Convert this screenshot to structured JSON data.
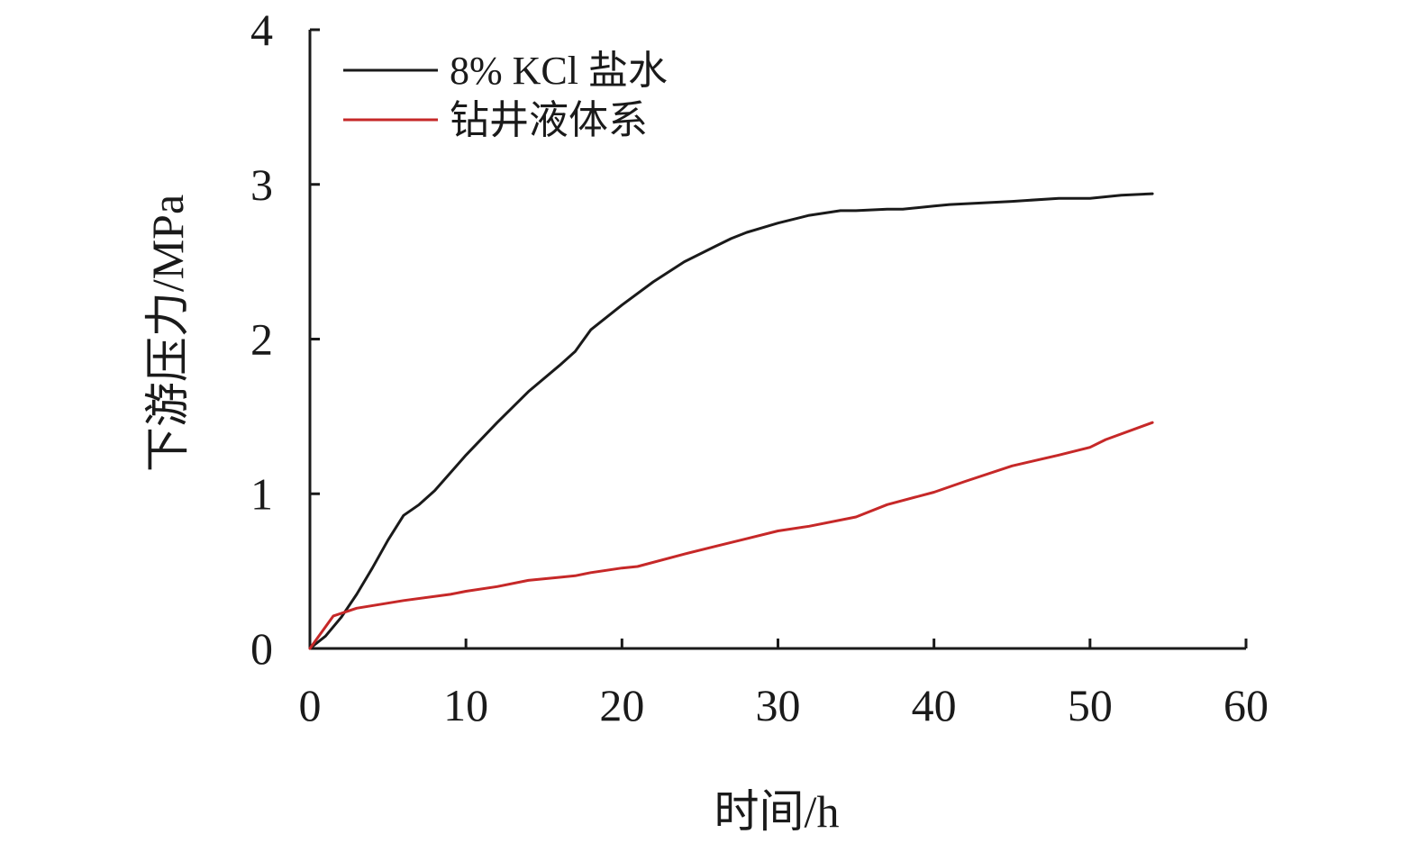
{
  "chart_data": {
    "type": "line",
    "title": "",
    "xlabel": "时间/h",
    "ylabel": "下游压力/MPa",
    "xlim": [
      0,
      60
    ],
    "ylim": [
      0,
      4
    ],
    "xticks": [
      0,
      10,
      20,
      30,
      40,
      50,
      60
    ],
    "yticks": [
      0,
      1,
      2,
      3,
      4
    ],
    "grid": false,
    "legend_position": "top-left",
    "series": [
      {
        "name": "8% KCl 盐水",
        "color": "#1a1a1a",
        "x": [
          0,
          1,
          2,
          3,
          4,
          5,
          6,
          7,
          8,
          10,
          12,
          14,
          16,
          17,
          18,
          20,
          22,
          24,
          26,
          27,
          28,
          30,
          32,
          34,
          35,
          37,
          38,
          40,
          41,
          45,
          48,
          50,
          52,
          54
        ],
        "y": [
          0,
          0.08,
          0.2,
          0.35,
          0.52,
          0.7,
          0.86,
          0.93,
          1.02,
          1.25,
          1.46,
          1.66,
          1.83,
          1.92,
          2.06,
          2.22,
          2.37,
          2.5,
          2.6,
          2.65,
          2.69,
          2.75,
          2.8,
          2.83,
          2.83,
          2.84,
          2.84,
          2.86,
          2.87,
          2.89,
          2.91,
          2.91,
          2.93,
          2.94
        ]
      },
      {
        "name": "钻井液体系",
        "color": "#c62828",
        "x": [
          0,
          1.5,
          3,
          6,
          9,
          10,
          12,
          14,
          16,
          17,
          18,
          20,
          21,
          24,
          26,
          28,
          30,
          32,
          35,
          37,
          40,
          42,
          45,
          48,
          50,
          51,
          54
        ],
        "y": [
          0,
          0.21,
          0.26,
          0.31,
          0.35,
          0.37,
          0.4,
          0.44,
          0.46,
          0.47,
          0.49,
          0.52,
          0.53,
          0.61,
          0.66,
          0.71,
          0.76,
          0.79,
          0.85,
          0.93,
          1.01,
          1.08,
          1.18,
          1.25,
          1.3,
          1.35,
          1.46
        ]
      }
    ]
  }
}
